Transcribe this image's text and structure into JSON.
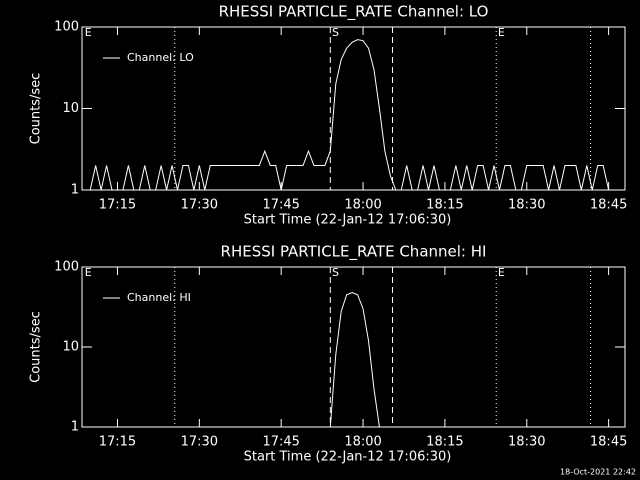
{
  "chart_data": [
    {
      "type": "line",
      "title": "RHESSI PARTICLE_RATE Channel: LO",
      "x_label": "Start Time (22-Jan-12 17:06:30)",
      "y_label": "Counts/sec",
      "x": [
        1030,
        1031,
        1032,
        1033,
        1034,
        1035,
        1036,
        1037,
        1038,
        1039,
        1040,
        1041,
        1042,
        1043,
        1044,
        1045,
        1046,
        1047,
        1048,
        1049,
        1050,
        1051,
        1052,
        1053,
        1054,
        1055,
        1056,
        1057,
        1058,
        1059,
        1060,
        1061,
        1062,
        1063,
        1064,
        1065,
        1066,
        1067,
        1068,
        1069,
        1070,
        1071,
        1072,
        1073,
        1074,
        1075,
        1076,
        1077,
        1078,
        1079,
        1080,
        1081,
        1082,
        1083,
        1084,
        1085,
        1086,
        1087,
        1088,
        1089,
        1090,
        1091,
        1092,
        1093,
        1094,
        1095,
        1096,
        1097,
        1098,
        1099,
        1100,
        1101,
        1102,
        1103,
        1104,
        1105,
        1106,
        1107,
        1108,
        1109,
        1110,
        1111,
        1112,
        1113,
        1114,
        1115,
        1116,
        1117,
        1118,
        1119,
        1120,
        1121,
        1122,
        1123,
        1124,
        1125,
        1126
      ],
      "series": [
        {
          "name": "Channel: LO",
          "color": "#ffffff",
          "values": [
            1,
            2,
            1,
            2,
            1,
            1,
            1,
            2,
            1,
            1,
            2,
            1,
            1,
            2,
            1,
            2,
            1,
            2,
            2,
            1,
            2,
            1,
            2,
            2,
            2,
            2,
            2,
            2,
            2,
            2,
            2,
            2,
            3,
            2,
            2,
            1,
            2,
            2,
            2,
            2,
            3,
            2,
            2,
            2,
            3,
            20,
            40,
            55,
            65,
            70,
            68,
            55,
            30,
            10,
            3,
            1.5,
            1,
            1,
            2,
            1,
            1,
            2,
            1,
            2,
            1,
            1,
            1,
            2,
            1,
            2,
            1,
            2,
            2,
            1,
            2,
            1,
            2,
            2,
            1,
            1,
            2,
            2,
            2,
            2,
            1,
            2,
            1,
            2,
            2,
            2,
            1,
            2,
            1,
            2,
            2,
            1,
            1
          ]
        }
      ],
      "xlim": [
        1028.5,
        1128
      ],
      "xticks": [
        {
          "value": 1035,
          "label": "17:15"
        },
        {
          "value": 1050,
          "label": "17:30"
        },
        {
          "value": 1065,
          "label": "17:45"
        },
        {
          "value": 1080,
          "label": "18:00"
        },
        {
          "value": 1095,
          "label": "18:15"
        },
        {
          "value": 1110,
          "label": "18:30"
        },
        {
          "value": 1125,
          "label": "18:45"
        }
      ],
      "ylim": [
        1,
        100
      ],
      "yticks": [
        1,
        10,
        100
      ],
      "log_y": true,
      "markers": [
        {
          "x": 1045.5,
          "style": "dotted"
        },
        {
          "x": 1074,
          "style": "dashed"
        },
        {
          "x": 1085.4,
          "style": "dashed"
        },
        {
          "x": 1104.4,
          "style": "dotted"
        },
        {
          "x": 1121.7,
          "style": "dotted"
        }
      ],
      "annotations": [
        {
          "x": 1029,
          "text": "E"
        },
        {
          "x": 1074.3,
          "text": "S"
        },
        {
          "x": 1104.7,
          "text": "E"
        }
      ]
    },
    {
      "type": "line",
      "title": "RHESSI PARTICLE_RATE Channel: HI",
      "x_label": "Start Time (22-Jan-12 17:06:30)",
      "y_label": "Counts/sec",
      "x": [
        1074,
        1075,
        1076,
        1077,
        1078,
        1079,
        1080,
        1081,
        1082,
        1083
      ],
      "series": [
        {
          "name": "Channel: HI",
          "color": "#ffffff",
          "values": [
            1,
            8,
            28,
            45,
            48,
            45,
            30,
            12,
            3,
            1
          ]
        }
      ],
      "xlim": [
        1028.5,
        1128
      ],
      "xticks": [
        {
          "value": 1035,
          "label": "17:15"
        },
        {
          "value": 1050,
          "label": "17:30"
        },
        {
          "value": 1065,
          "label": "17:45"
        },
        {
          "value": 1080,
          "label": "18:00"
        },
        {
          "value": 1095,
          "label": "18:15"
        },
        {
          "value": 1110,
          "label": "18:30"
        },
        {
          "value": 1125,
          "label": "18:45"
        }
      ],
      "ylim": [
        1,
        100
      ],
      "yticks": [
        1,
        10,
        100
      ],
      "log_y": true,
      "markers": [
        {
          "x": 1045.5,
          "style": "dotted"
        },
        {
          "x": 1074,
          "style": "dashed"
        },
        {
          "x": 1085.4,
          "style": "dashed"
        },
        {
          "x": 1104.4,
          "style": "dotted"
        },
        {
          "x": 1121.7,
          "style": "dotted"
        }
      ],
      "annotations": [
        {
          "x": 1029,
          "text": "E"
        },
        {
          "x": 1074.3,
          "text": "S"
        },
        {
          "x": 1104.7,
          "text": "E"
        }
      ]
    }
  ],
  "footer": "18-Oct-2021 22:42"
}
